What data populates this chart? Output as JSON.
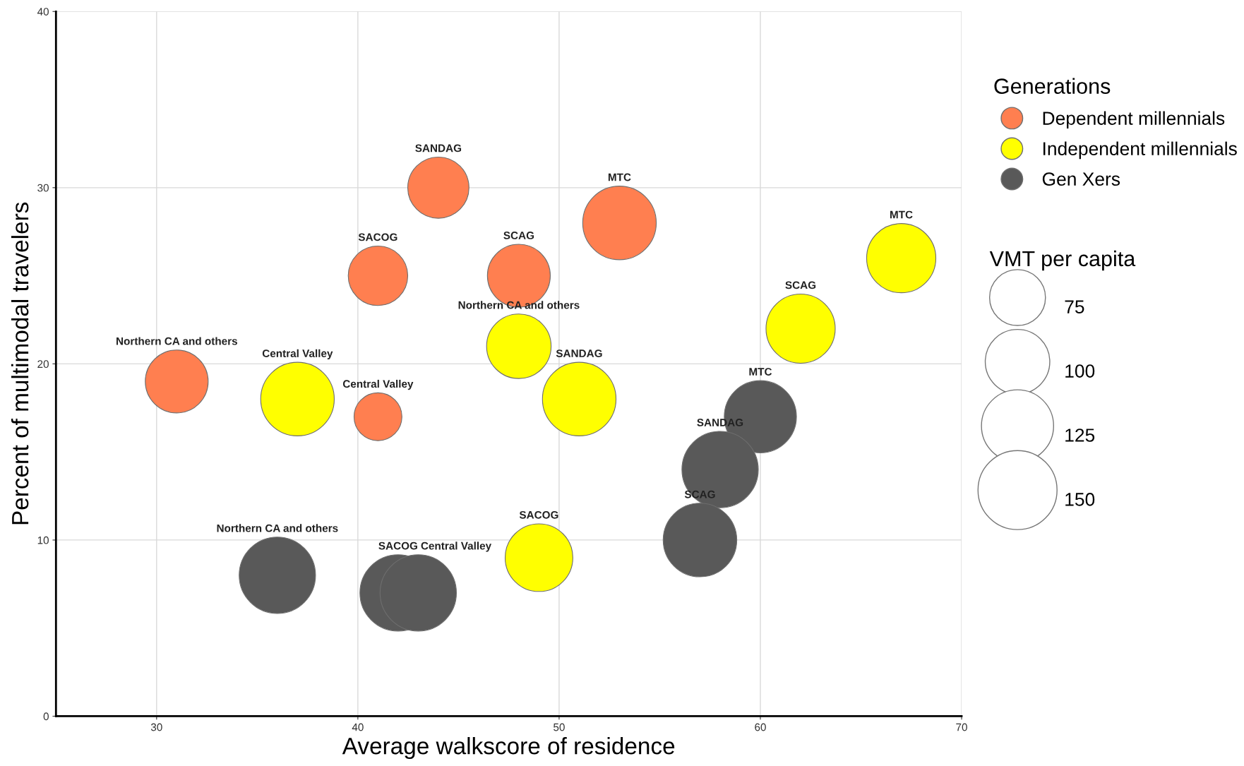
{
  "chart_data": {
    "type": "bubble",
    "xlabel": "Average walkscore of residence",
    "ylabel": "Percent of multimodal travelers",
    "legend_title": "Generations",
    "xlim": [
      25,
      70
    ],
    "xticks": [
      30,
      40,
      50,
      60,
      70
    ],
    "ylim": [
      0,
      40
    ],
    "yticks": [
      0,
      10,
      20,
      30,
      40
    ],
    "grid": true,
    "legend": "right",
    "size_legend": [
      75,
      100,
      125,
      150
    ],
    "series": [
      {
        "name": "Dependent millennials",
        "color": "#ff7f50",
        "x": [
          44,
          53,
          41,
          48,
          31,
          41
        ],
        "values": [
          30,
          28,
          25,
          25,
          19,
          17
        ],
        "sizes": [
          90,
          130,
          85,
          95,
          95,
          55
        ],
        "value_labels": [
          "SANDAG",
          "MTC",
          "SACOG",
          "SCAG",
          "Northern CA and others",
          "Central Valley"
        ]
      },
      {
        "name": "Independent millennials",
        "color": "#ffff00",
        "x": [
          67,
          62,
          48,
          51,
          37,
          49
        ],
        "values": [
          26,
          22,
          21,
          18,
          18,
          9
        ],
        "sizes": [
          115,
          115,
          100,
          130,
          130,
          110
        ],
        "value_labels": [
          "MTC",
          "SCAG",
          "Northern CA and others",
          "SANDAG",
          "Central Valley",
          "SACOG"
        ]
      },
      {
        "name": "Gen Xers",
        "color": "#595959",
        "x": [
          60,
          58,
          57,
          36,
          42,
          43
        ],
        "values": [
          17,
          14,
          10,
          8,
          7,
          7
        ],
        "sizes": [
          125,
          140,
          130,
          140,
          140,
          140
        ],
        "value_labels": [
          "MTC",
          "SANDAG",
          "SCAG",
          "Northern CA and others",
          "SACOG",
          "Central Valley"
        ]
      }
    ],
    "annotations": [
      "VMT per capita"
    ]
  }
}
